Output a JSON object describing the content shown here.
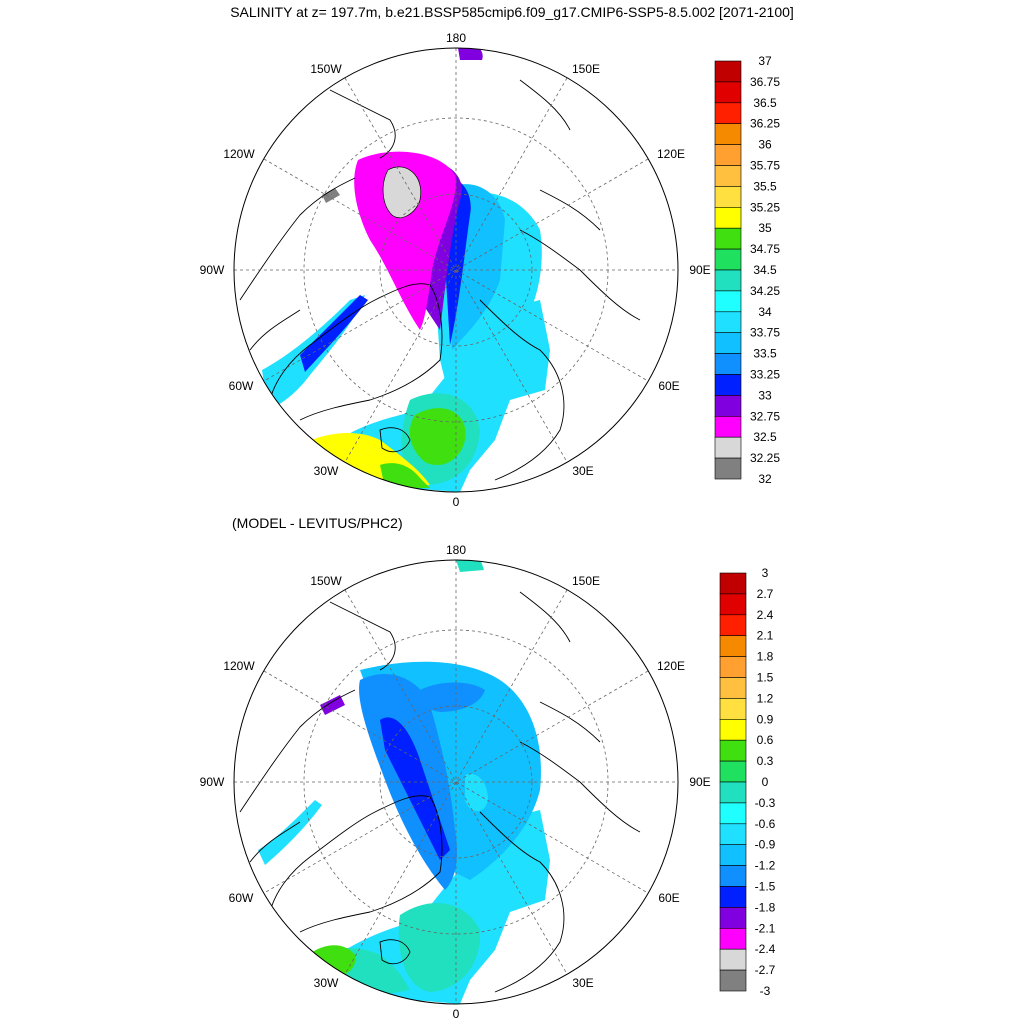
{
  "title": "SALINITY at z= 197.7m, b.e21.BSSP585cmip6.f09_g17.CMIP6-SSP5-8.5.002 [2071-2100]",
  "subtitle": "(MODEL - LEVITUS/PHC2)",
  "longitude_labels": {
    "lon_180": "180",
    "lon_150w": "150W",
    "lon_150e": "150E",
    "lon_120w": "120W",
    "lon_120e": "120E",
    "lon_90w": "90W",
    "lon_90e": "90E",
    "lon_60w": "60W",
    "lon_60e": "60E",
    "lon_30w": "30W",
    "lon_30e": "30E",
    "lon_0": "0"
  },
  "colorbar_top": {
    "labels": [
      "37",
      "36.75",
      "36.5",
      "36.25",
      "36",
      "35.75",
      "35.5",
      "35.25",
      "35",
      "34.75",
      "34.5",
      "34.25",
      "34",
      "33.75",
      "33.5",
      "33.25",
      "33",
      "32.75",
      "32.5",
      "32.25",
      "32"
    ],
    "colors": [
      "#c00000",
      "#e00000",
      "#ff2000",
      "#f58a00",
      "#ffa030",
      "#ffc040",
      "#ffe040",
      "#ffff00",
      "#40e010",
      "#20e060",
      "#20e0c0",
      "#20ffff",
      "#20e0ff",
      "#10c0ff",
      "#1090ff",
      "#0020ff",
      "#8000e0",
      "#ff00ff",
      "#d8d8d8",
      "#808080"
    ]
  },
  "colorbar_bottom": {
    "labels": [
      "3",
      "2.7",
      "2.4",
      "2.1",
      "1.8",
      "1.5",
      "1.2",
      "0.9",
      "0.6",
      "0.3",
      "0",
      "-0.3",
      "-0.6",
      "-0.9",
      "-1.2",
      "-1.5",
      "-1.8",
      "-2.1",
      "-2.4",
      "-2.7",
      "-3"
    ],
    "colors": [
      "#c00000",
      "#e00000",
      "#ff2000",
      "#f58a00",
      "#ffa030",
      "#ffc040",
      "#ffe040",
      "#ffff00",
      "#40e010",
      "#20e060",
      "#20e0c0",
      "#20ffff",
      "#20e0ff",
      "#10c0ff",
      "#1090ff",
      "#0020ff",
      "#8000e0",
      "#ff00ff",
      "#d8d8d8",
      "#808080"
    ]
  }
}
